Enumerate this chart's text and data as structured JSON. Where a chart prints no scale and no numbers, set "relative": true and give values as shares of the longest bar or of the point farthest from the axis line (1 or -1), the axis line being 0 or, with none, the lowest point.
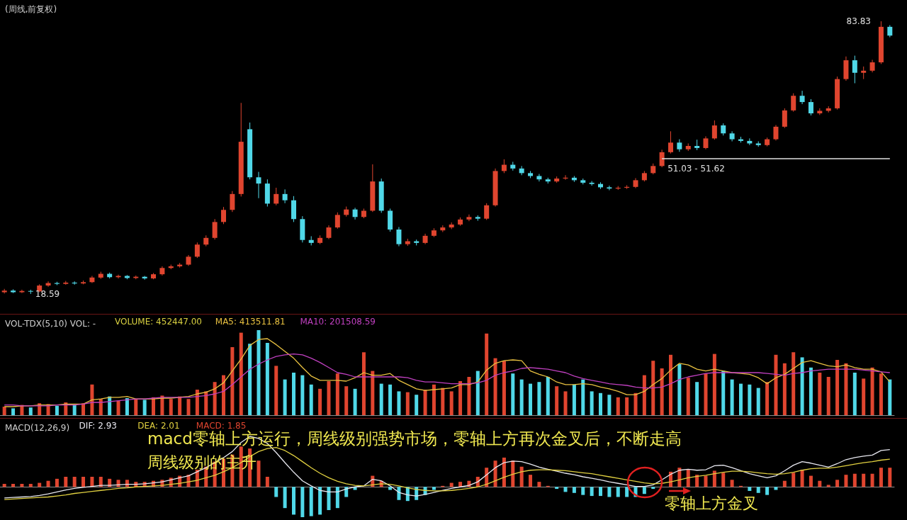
{
  "chart_data": [
    {
      "type": "candlestick",
      "title": "(周线,前复权)",
      "tick_labels": false,
      "categories": [
        null,
        null,
        null,
        null,
        null,
        null,
        null,
        null,
        null,
        null,
        null,
        null,
        null,
        null,
        null,
        null,
        null,
        null,
        null,
        null,
        null,
        null,
        null,
        null,
        null,
        null,
        null,
        null,
        null,
        null,
        null,
        null,
        null,
        null,
        null,
        null,
        null,
        null,
        null,
        null,
        null,
        null,
        null,
        null,
        null,
        null,
        null,
        null,
        null,
        null,
        null,
        null,
        null,
        null,
        null,
        null,
        null,
        null,
        null,
        null,
        null,
        null,
        null,
        null,
        null,
        null,
        null,
        null,
        null,
        null,
        null,
        null,
        null,
        null,
        null,
        null,
        null,
        null,
        null,
        null,
        null,
        null,
        null,
        null,
        null,
        null,
        null,
        null,
        null,
        null,
        null,
        null,
        null,
        null,
        null,
        null,
        null,
        null,
        null,
        null,
        null,
        null
      ],
      "ohlc": [
        [
          19.0,
          19.8,
          18.7,
          19.4
        ],
        [
          19.4,
          19.7,
          18.8,
          19.0
        ],
        [
          19.0,
          19.6,
          18.8,
          19.3
        ],
        [
          19.3,
          19.6,
          18.59,
          19.2
        ],
        [
          19.2,
          20.9,
          19.0,
          20.6
        ],
        [
          20.6,
          21.6,
          20.3,
          21.2
        ],
        [
          21.2,
          21.5,
          20.7,
          21.0
        ],
        [
          21.0,
          21.7,
          20.8,
          21.3
        ],
        [
          21.3,
          21.6,
          20.8,
          21.1
        ],
        [
          21.1,
          21.8,
          20.9,
          21.4
        ],
        [
          21.4,
          22.9,
          21.2,
          22.5
        ],
        [
          22.5,
          23.9,
          22.2,
          23.4
        ],
        [
          23.4,
          23.7,
          22.3,
          22.6
        ],
        [
          22.6,
          23.2,
          22.3,
          22.9
        ],
        [
          22.9,
          23.1,
          22.1,
          22.4
        ],
        [
          22.4,
          23.0,
          22.1,
          22.7
        ],
        [
          22.7,
          22.9,
          22.0,
          22.3
        ],
        [
          22.3,
          23.6,
          22.1,
          23.3
        ],
        [
          23.3,
          25.2,
          23.0,
          24.8
        ],
        [
          24.8,
          25.6,
          24.5,
          25.2
        ],
        [
          25.2,
          26.0,
          24.9,
          25.6
        ],
        [
          25.6,
          27.9,
          25.3,
          27.5
        ],
        [
          27.5,
          30.9,
          27.2,
          30.4
        ],
        [
          30.4,
          32.6,
          30.0,
          32.0
        ],
        [
          32.0,
          36.5,
          31.6,
          35.8
        ],
        [
          35.8,
          39.4,
          35.3,
          38.7
        ],
        [
          38.7,
          43.2,
          38.2,
          42.5
        ],
        [
          42.5,
          64.3,
          41.9,
          55.0
        ],
        [
          58.0,
          59.6,
          46.0,
          46.5
        ],
        [
          46.5,
          47.8,
          41.5,
          45.0
        ],
        [
          45.0,
          46.0,
          39.5,
          40.2
        ],
        [
          40.2,
          44.0,
          39.8,
          42.5
        ],
        [
          42.5,
          43.6,
          40.3,
          41.0
        ],
        [
          41.0,
          42.0,
          35.8,
          36.5
        ],
        [
          36.5,
          37.2,
          30.9,
          31.5
        ],
        [
          31.5,
          32.4,
          30.2,
          30.8
        ],
        [
          30.8,
          32.6,
          30.5,
          32.0
        ],
        [
          32.0,
          35.0,
          31.7,
          34.5
        ],
        [
          34.5,
          38.1,
          34.2,
          37.5
        ],
        [
          37.5,
          39.5,
          37.1,
          38.8
        ],
        [
          38.8,
          39.2,
          36.4,
          37.0
        ],
        [
          37.0,
          39.0,
          36.7,
          38.5
        ],
        [
          38.5,
          49.6,
          38.2,
          45.5
        ],
        [
          45.5,
          46.2,
          38.0,
          38.5
        ],
        [
          38.5,
          39.0,
          33.5,
          34.0
        ],
        [
          34.0,
          34.6,
          30.0,
          30.5
        ],
        [
          30.5,
          31.8,
          30.1,
          31.2
        ],
        [
          31.2,
          31.6,
          30.2,
          30.8
        ],
        [
          30.8,
          33.0,
          30.5,
          32.5
        ],
        [
          32.5,
          34.3,
          32.2,
          33.8
        ],
        [
          33.8,
          35.0,
          33.4,
          34.5
        ],
        [
          34.5,
          35.7,
          34.1,
          35.2
        ],
        [
          35.2,
          36.9,
          34.9,
          36.4
        ],
        [
          36.4,
          37.6,
          36.0,
          37.0
        ],
        [
          37.0,
          37.4,
          36.1,
          36.6
        ],
        [
          36.6,
          40.3,
          36.3,
          39.8
        ],
        [
          39.8,
          48.6,
          39.5,
          48.0
        ],
        [
          48.0,
          50.8,
          47.5,
          49.5
        ],
        [
          49.5,
          50.2,
          48.1,
          48.6
        ],
        [
          48.6,
          49.2,
          47.0,
          47.5
        ],
        [
          47.5,
          48.0,
          46.3,
          46.8
        ],
        [
          46.8,
          47.3,
          45.5,
          46.0
        ],
        [
          46.0,
          46.4,
          45.0,
          45.5
        ],
        [
          45.5,
          46.7,
          45.2,
          46.2
        ],
        [
          46.2,
          47.0,
          45.9,
          46.4
        ],
        [
          46.4,
          46.8,
          45.4,
          45.8
        ],
        [
          45.8,
          46.2,
          44.8,
          45.2
        ],
        [
          45.2,
          45.6,
          44.5,
          44.9
        ],
        [
          44.9,
          45.3,
          43.7,
          44.1
        ],
        [
          44.1,
          44.5,
          43.4,
          43.8
        ],
        [
          43.8,
          44.4,
          43.5,
          44.0
        ],
        [
          44.0,
          44.6,
          43.7,
          44.2
        ],
        [
          44.2,
          46.3,
          43.9,
          45.8
        ],
        [
          45.8,
          48.0,
          45.5,
          47.5
        ],
        [
          47.5,
          49.8,
          47.2,
          49.2
        ],
        [
          49.2,
          53.1,
          48.9,
          52.5
        ],
        [
          52.5,
          57.5,
          52.2,
          54.8
        ],
        [
          54.8,
          55.6,
          52.6,
          53.2
        ],
        [
          53.2,
          54.6,
          52.8,
          54.0
        ],
        [
          54.0,
          55.5,
          53.0,
          53.5
        ],
        [
          53.5,
          56.3,
          53.2,
          55.8
        ],
        [
          55.8,
          60.1,
          55.5,
          58.9
        ],
        [
          58.9,
          59.4,
          56.5,
          57.0
        ],
        [
          57.0,
          57.5,
          55.1,
          55.6
        ],
        [
          55.6,
          56.2,
          54.8,
          55.2
        ],
        [
          55.2,
          55.8,
          54.2,
          54.6
        ],
        [
          54.6,
          55.1,
          53.8,
          54.2
        ],
        [
          54.2,
          56.0,
          53.9,
          55.6
        ],
        [
          55.6,
          59.0,
          55.3,
          58.6
        ],
        [
          58.6,
          63.0,
          58.3,
          62.5
        ],
        [
          62.5,
          66.6,
          62.2,
          66.0
        ],
        [
          66.0,
          67.2,
          64.0,
          64.5
        ],
        [
          64.5,
          65.2,
          61.3,
          61.8
        ],
        [
          61.8,
          63.0,
          61.4,
          62.4
        ],
        [
          62.4,
          63.5,
          62.0,
          63.0
        ],
        [
          63.0,
          70.6,
          62.7,
          70.0
        ],
        [
          70.0,
          75.4,
          69.6,
          74.5
        ],
        [
          74.5,
          75.6,
          69.0,
          71.5
        ],
        [
          71.5,
          73.0,
          70.0,
          72.0
        ],
        [
          72.0,
          74.6,
          71.6,
          74.0
        ],
        [
          74.0,
          83.83,
          73.6,
          82.5
        ],
        [
          82.5,
          82.9,
          80.0,
          80.4
        ]
      ],
      "colors": [
        "#e0452f",
        "#50d8e8",
        "#e0452f",
        "#50d8e8",
        "#e0452f",
        "#e0452f",
        "#50d8e8",
        "#e0452f",
        "#50d8e8",
        "#e0452f",
        "#e0452f",
        "#e0452f",
        "#50d8e8",
        "#e0452f",
        "#50d8e8",
        "#e0452f",
        "#50d8e8",
        "#e0452f",
        "#e0452f",
        "#e0452f",
        "#e0452f",
        "#e0452f",
        "#e0452f",
        "#e0452f",
        "#e0452f",
        "#e0452f",
        "#e0452f",
        "#e0452f",
        "#50d8e8",
        "#50d8e8",
        "#50d8e8",
        "#e0452f",
        "#50d8e8",
        "#50d8e8",
        "#50d8e8",
        "#50d8e8",
        "#e0452f",
        "#e0452f",
        "#e0452f",
        "#e0452f",
        "#50d8e8",
        "#e0452f",
        "#e0452f",
        "#50d8e8",
        "#50d8e8",
        "#50d8e8",
        "#e0452f",
        "#50d8e8",
        "#e0452f",
        "#e0452f",
        "#e0452f",
        "#e0452f",
        "#e0452f",
        "#e0452f",
        "#50d8e8",
        "#e0452f",
        "#e0452f",
        "#e0452f",
        "#50d8e8",
        "#50d8e8",
        "#50d8e8",
        "#50d8e8",
        "#50d8e8",
        "#e0452f",
        "#e0452f",
        "#50d8e8",
        "#50d8e8",
        "#50d8e8",
        "#50d8e8",
        "#50d8e8",
        "#e0452f",
        "#e0452f",
        "#e0452f",
        "#e0452f",
        "#e0452f",
        "#e0452f",
        "#e0452f",
        "#50d8e8",
        "#e0452f",
        "#50d8e8",
        "#e0452f",
        "#e0452f",
        "#50d8e8",
        "#50d8e8",
        "#50d8e8",
        "#50d8e8",
        "#50d8e8",
        "#e0452f",
        "#e0452f",
        "#e0452f",
        "#e0452f",
        "#50d8e8",
        "#50d8e8",
        "#e0452f",
        "#e0452f",
        "#e0452f",
        "#e0452f",
        "#50d8e8",
        "#e0452f",
        "#e0452f",
        "#e0452f",
        "#50d8e8"
      ],
      "ref_lines": [
        {
          "axis": "y",
          "value": 51.03,
          "label": "51.03 - 51.62",
          "color": "#e0e0e0"
        }
      ],
      "annotations": [
        "18.59",
        "83.83"
      ]
    },
    {
      "type": "bar",
      "title": "VOL-TDX(5,10) VOL: -",
      "relative": true,
      "tick_labels": false,
      "marker": "none",
      "categories": [
        null,
        null,
        null,
        null,
        null,
        null,
        null,
        null,
        null,
        null,
        null,
        null,
        null,
        null,
        null,
        null,
        null,
        null,
        null,
        null,
        null,
        null,
        null,
        null,
        null,
        null,
        null,
        null,
        null,
        null,
        null,
        null,
        null,
        null,
        null,
        null,
        null,
        null,
        null,
        null,
        null,
        null,
        null,
        null,
        null,
        null,
        null,
        null,
        null,
        null,
        null,
        null,
        null,
        null,
        null,
        null,
        null,
        null,
        null,
        null,
        null,
        null,
        null,
        null,
        null,
        null,
        null,
        null,
        null,
        null,
        null,
        null,
        null,
        null,
        null,
        null,
        null,
        null,
        null,
        null,
        null,
        null,
        null,
        null,
        null,
        null,
        null,
        null,
        null,
        null,
        null,
        null,
        null,
        null,
        null,
        null,
        null,
        null,
        null,
        null,
        null,
        null
      ],
      "series": [
        {
          "type": "bar",
          "colors": [
            "#e0452f",
            "#50d8e8",
            "#e0452f",
            "#50d8e8",
            "#e0452f",
            "#e0452f",
            "#50d8e8",
            "#e0452f",
            "#50d8e8",
            "#e0452f",
            "#e0452f",
            "#e0452f",
            "#50d8e8",
            "#e0452f",
            "#50d8e8",
            "#e0452f",
            "#50d8e8",
            "#e0452f",
            "#e0452f",
            "#e0452f",
            "#e0452f",
            "#e0452f",
            "#e0452f",
            "#e0452f",
            "#e0452f",
            "#e0452f",
            "#e0452f",
            "#e0452f",
            "#50d8e8",
            "#50d8e8",
            "#50d8e8",
            "#e0452f",
            "#50d8e8",
            "#50d8e8",
            "#50d8e8",
            "#50d8e8",
            "#e0452f",
            "#e0452f",
            "#e0452f",
            "#e0452f",
            "#50d8e8",
            "#e0452f",
            "#e0452f",
            "#50d8e8",
            "#50d8e8",
            "#50d8e8",
            "#e0452f",
            "#50d8e8",
            "#e0452f",
            "#e0452f",
            "#e0452f",
            "#e0452f",
            "#e0452f",
            "#e0452f",
            "#50d8e8",
            "#e0452f",
            "#e0452f",
            "#e0452f",
            "#50d8e8",
            "#50d8e8",
            "#50d8e8",
            "#50d8e8",
            "#50d8e8",
            "#e0452f",
            "#e0452f",
            "#50d8e8",
            "#50d8e8",
            "#50d8e8",
            "#50d8e8",
            "#50d8e8",
            "#e0452f",
            "#e0452f",
            "#e0452f",
            "#e0452f",
            "#e0452f",
            "#e0452f",
            "#e0452f",
            "#50d8e8",
            "#e0452f",
            "#50d8e8",
            "#e0452f",
            "#e0452f",
            "#50d8e8",
            "#50d8e8",
            "#50d8e8",
            "#50d8e8",
            "#50d8e8",
            "#e0452f",
            "#e0452f",
            "#e0452f",
            "#e0452f",
            "#50d8e8",
            "#50d8e8",
            "#e0452f",
            "#e0452f",
            "#e0452f",
            "#e0452f",
            "#50d8e8",
            "#e0452f",
            "#e0452f",
            "#e0452f",
            "#50d8e8"
          ],
          "values": [
            0.1,
            0.08,
            0.12,
            0.09,
            0.14,
            0.13,
            0.11,
            0.15,
            0.12,
            0.14,
            0.36,
            0.19,
            0.22,
            0.17,
            0.2,
            0.19,
            0.18,
            0.21,
            0.23,
            0.19,
            0.22,
            0.19,
            0.3,
            0.28,
            0.39,
            0.47,
            0.8,
            0.97,
            0.84,
            1.0,
            0.85,
            0.58,
            0.42,
            0.5,
            0.47,
            0.36,
            0.31,
            0.4,
            0.49,
            0.34,
            0.31,
            0.74,
            0.52,
            0.37,
            0.36,
            0.28,
            0.27,
            0.24,
            0.3,
            0.36,
            0.32,
            0.28,
            0.4,
            0.45,
            0.52,
            0.96,
            0.67,
            0.64,
            0.49,
            0.42,
            0.37,
            0.39,
            0.45,
            0.34,
            0.28,
            0.36,
            0.42,
            0.28,
            0.26,
            0.24,
            0.21,
            0.21,
            0.26,
            0.47,
            0.64,
            0.55,
            0.71,
            0.6,
            0.44,
            0.39,
            0.49,
            0.72,
            0.52,
            0.42,
            0.37,
            0.36,
            0.32,
            0.39,
            0.71,
            0.61,
            0.74,
            0.68,
            0.56,
            0.5,
            0.45,
            0.65,
            0.61,
            0.5,
            0.43,
            0.56,
            0.49,
            0.42
          ]
        },
        {
          "name": "MA5: 413511.81",
          "type": "line",
          "color": "#e8c040",
          "values": [
            0.1,
            0.1,
            0.11,
            0.11,
            0.12,
            0.12,
            0.12,
            0.13,
            0.13,
            0.13,
            0.18,
            0.19,
            0.21,
            0.21,
            0.22,
            0.19,
            0.19,
            0.19,
            0.2,
            0.2,
            0.21,
            0.22,
            0.25,
            0.27,
            0.31,
            0.38,
            0.52,
            0.66,
            0.82,
            0.89,
            0.9,
            0.83,
            0.75,
            0.67,
            0.56,
            0.46,
            0.41,
            0.41,
            0.41,
            0.4,
            0.44,
            0.5,
            0.47,
            0.47,
            0.49,
            0.41,
            0.36,
            0.31,
            0.29,
            0.3,
            0.31,
            0.32,
            0.36,
            0.36,
            0.39,
            0.53,
            0.61,
            0.64,
            0.65,
            0.64,
            0.52,
            0.48,
            0.45,
            0.39,
            0.36,
            0.36,
            0.37,
            0.36,
            0.33,
            0.31,
            0.28,
            0.24,
            0.24,
            0.28,
            0.36,
            0.43,
            0.53,
            0.61,
            0.59,
            0.54,
            0.52,
            0.54,
            0.52,
            0.5,
            0.49,
            0.48,
            0.44,
            0.37,
            0.44,
            0.48,
            0.55,
            0.62,
            0.64,
            0.61,
            0.58,
            0.57,
            0.59,
            0.56,
            0.54,
            0.54,
            0.51,
            0.39
          ]
        },
        {
          "name": "MA10: 201508.59",
          "type": "line",
          "color": "#c040c0",
          "values": [
            0.12,
            0.12,
            0.11,
            0.11,
            0.11,
            0.11,
            0.12,
            0.12,
            0.12,
            0.13,
            0.15,
            0.15,
            0.16,
            0.17,
            0.18,
            0.19,
            0.19,
            0.2,
            0.21,
            0.21,
            0.21,
            0.21,
            0.22,
            0.23,
            0.25,
            0.28,
            0.36,
            0.45,
            0.54,
            0.6,
            0.65,
            0.69,
            0.71,
            0.72,
            0.71,
            0.67,
            0.62,
            0.56,
            0.5,
            0.48,
            0.45,
            0.45,
            0.45,
            0.45,
            0.45,
            0.45,
            0.44,
            0.41,
            0.39,
            0.39,
            0.38,
            0.37,
            0.37,
            0.37,
            0.38,
            0.41,
            0.47,
            0.5,
            0.52,
            0.55,
            0.56,
            0.55,
            0.54,
            0.52,
            0.5,
            0.46,
            0.43,
            0.41,
            0.39,
            0.37,
            0.36,
            0.35,
            0.33,
            0.32,
            0.32,
            0.33,
            0.37,
            0.42,
            0.45,
            0.47,
            0.49,
            0.5,
            0.5,
            0.5,
            0.5,
            0.5,
            0.5,
            0.49,
            0.48,
            0.47,
            0.49,
            0.5,
            0.52,
            0.53,
            0.54,
            0.54,
            0.54,
            0.54,
            0.53,
            0.52,
            0.51,
            0.5
          ]
        }
      ],
      "annotations": [
        "VOLUME: 452447.00"
      ]
    },
    {
      "type": "line",
      "title": "MACD(12,26,9)",
      "relative": true,
      "tick_labels": false,
      "marker": "none",
      "categories": [
        null,
        null,
        null,
        null,
        null,
        null,
        null,
        null,
        null,
        null,
        null,
        null,
        null,
        null,
        null,
        null,
        null,
        null,
        null,
        null,
        null,
        null,
        null,
        null,
        null,
        null,
        null,
        null,
        null,
        null,
        null,
        null,
        null,
        null,
        null,
        null,
        null,
        null,
        null,
        null,
        null,
        null,
        null,
        null,
        null,
        null,
        null,
        null,
        null,
        null,
        null,
        null,
        null,
        null,
        null,
        null,
        null,
        null,
        null,
        null,
        null,
        null,
        null,
        null,
        null,
        null,
        null,
        null,
        null,
        null,
        null,
        null,
        null,
        null,
        null,
        null,
        null,
        null,
        null,
        null,
        null,
        null,
        null,
        null,
        null,
        null,
        null,
        null,
        null,
        null,
        null,
        null,
        null,
        null,
        null,
        null,
        null,
        null,
        null,
        null,
        null,
        null
      ],
      "series": [
        {
          "name": "DIF: 2.93",
          "color": "#e8e8f0",
          "values": [
            -0.22,
            -0.21,
            -0.2,
            -0.19,
            -0.17,
            -0.14,
            -0.1,
            -0.06,
            -0.03,
            -0.01,
            0.01,
            0.03,
            0.03,
            0.04,
            0.05,
            0.05,
            0.06,
            0.08,
            0.1,
            0.14,
            0.18,
            0.22,
            0.3,
            0.38,
            0.48,
            0.58,
            0.7,
            0.88,
            1.0,
            0.96,
            0.86,
            0.68,
            0.48,
            0.29,
            0.12,
            0.02,
            -0.07,
            -0.1,
            -0.1,
            -0.04,
            0.0,
            0.02,
            0.15,
            0.12,
            0.02,
            -0.11,
            -0.16,
            -0.18,
            -0.15,
            -0.11,
            -0.07,
            -0.03,
            0.0,
            0.03,
            0.1,
            0.24,
            0.38,
            0.48,
            0.51,
            0.5,
            0.45,
            0.39,
            0.35,
            0.31,
            0.27,
            0.24,
            0.2,
            0.17,
            0.14,
            0.1,
            0.07,
            0.04,
            0.01,
            0.01,
            0.04,
            0.14,
            0.25,
            0.33,
            0.35,
            0.33,
            0.34,
            0.42,
            0.43,
            0.38,
            0.32,
            0.26,
            0.22,
            0.18,
            0.22,
            0.32,
            0.43,
            0.5,
            0.47,
            0.43,
            0.39,
            0.46,
            0.54,
            0.58,
            0.61,
            0.63,
            0.72,
            0.74
          ]
        },
        {
          "name": "DEA: 2.01",
          "color": "#e0d040",
          "values": [
            -0.25,
            -0.24,
            -0.23,
            -0.22,
            -0.21,
            -0.2,
            -0.18,
            -0.16,
            -0.13,
            -0.11,
            -0.09,
            -0.07,
            -0.05,
            -0.03,
            -0.02,
            0.0,
            0.01,
            0.02,
            0.03,
            0.05,
            0.07,
            0.1,
            0.13,
            0.18,
            0.23,
            0.3,
            0.38,
            0.48,
            0.6,
            0.7,
            0.76,
            0.78,
            0.72,
            0.62,
            0.5,
            0.38,
            0.27,
            0.18,
            0.11,
            0.06,
            0.03,
            0.02,
            0.04,
            0.06,
            0.05,
            0.02,
            -0.02,
            -0.05,
            -0.07,
            -0.08,
            -0.08,
            -0.07,
            -0.05,
            -0.03,
            0.0,
            0.05,
            0.12,
            0.19,
            0.25,
            0.3,
            0.33,
            0.34,
            0.34,
            0.33,
            0.32,
            0.3,
            0.28,
            0.26,
            0.23,
            0.2,
            0.17,
            0.14,
            0.11,
            0.08,
            0.06,
            0.07,
            0.1,
            0.14,
            0.18,
            0.21,
            0.23,
            0.26,
            0.29,
            0.31,
            0.31,
            0.3,
            0.28,
            0.26,
            0.25,
            0.26,
            0.29,
            0.33,
            0.36,
            0.37,
            0.37,
            0.39,
            0.42,
            0.45,
            0.48,
            0.5,
            0.53,
            0.55
          ]
        },
        {
          "name": "MACD: 1.85",
          "type": "bar",
          "color": "#e0452f",
          "values": [
            0.06,
            0.06,
            0.06,
            0.06,
            0.08,
            0.12,
            0.16,
            0.2,
            0.2,
            0.2,
            0.2,
            0.2,
            0.16,
            0.14,
            0.14,
            0.1,
            0.1,
            0.12,
            0.14,
            0.18,
            0.22,
            0.24,
            0.34,
            0.4,
            0.5,
            0.56,
            0.64,
            0.8,
            0.76,
            0.52,
            0.2,
            null,
            null,
            null,
            null,
            null,
            null,
            null,
            null,
            null,
            null,
            null,
            0.22,
            0.12,
            null,
            null,
            null,
            null,
            null,
            null,
            0.02,
            0.08,
            0.1,
            0.12,
            0.2,
            0.38,
            0.52,
            0.58,
            0.52,
            0.4,
            0.24,
            0.1,
            0.02,
            null,
            null,
            null,
            null,
            null,
            null,
            null,
            null,
            null,
            null,
            null,
            null,
            null,
            0.3,
            0.38,
            0.34,
            0.24,
            0.22,
            0.32,
            0.28,
            0.14,
            0.02,
            null,
            null,
            null,
            null,
            0.12,
            0.28,
            0.34,
            0.22,
            0.12,
            0.04,
            0.14,
            0.24,
            0.26,
            0.26,
            0.26,
            0.38,
            0.38
          ]
        },
        {
          "type": "bar",
          "color": "#50d8e8",
          "values": [
            null,
            null,
            null,
            null,
            null,
            null,
            null,
            null,
            null,
            null,
            null,
            null,
            null,
            null,
            null,
            null,
            null,
            null,
            null,
            null,
            null,
            null,
            null,
            null,
            null,
            null,
            null,
            null,
            null,
            null,
            null,
            -0.2,
            -0.42,
            -0.55,
            -0.6,
            -0.58,
            -0.55,
            -0.46,
            -0.42,
            -0.2,
            -0.06,
            null,
            null,
            null,
            -0.06,
            -0.26,
            -0.28,
            -0.26,
            -0.16,
            -0.06,
            null,
            null,
            null,
            null,
            null,
            null,
            null,
            null,
            null,
            null,
            null,
            null,
            null,
            -0.04,
            -0.1,
            -0.12,
            -0.16,
            -0.18,
            -0.18,
            -0.2,
            -0.2,
            -0.2,
            -0.2,
            -0.14,
            -0.04,
            null,
            null,
            null,
            null,
            null,
            null,
            null,
            null,
            null,
            null,
            -0.08,
            -0.12,
            -0.16,
            -0.06,
            null,
            null,
            null,
            null,
            null,
            null,
            null,
            null,
            null,
            null,
            null,
            null,
            null
          ]
        }
      ],
      "annotations": [
        "macd零轴上方运行，周线级别强势市场，零轴上方再次金叉后，不断走高",
        "周线级别的主升",
        "零轴上方金叉"
      ]
    }
  ]
}
